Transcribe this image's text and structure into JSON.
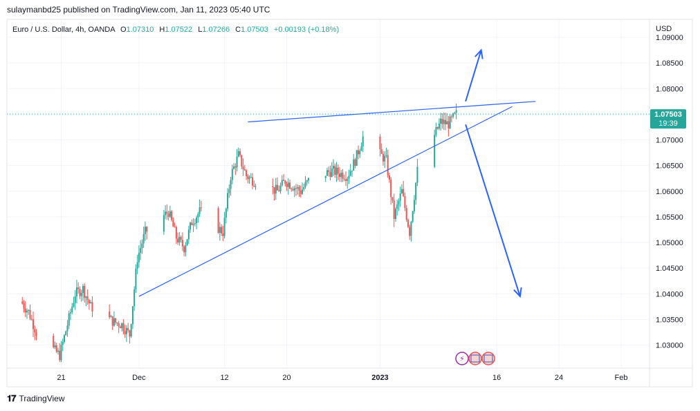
{
  "header": {
    "published": "sulaymanbd25 published on TradingView.com, Jan 11, 2023 05:40 UTC"
  },
  "symbol": {
    "name": "Euro / U.S. Dollar, 4h, OANDA",
    "open_label": "O",
    "open": "1.07310",
    "high_label": "H",
    "high": "1.07522",
    "low_label": "L",
    "low": "1.07266",
    "close_label": "C",
    "close": "1.07503",
    "change": "+0.00193 (+0.18%)"
  },
  "price_tag": {
    "price": "1.07503",
    "countdown": "19:39"
  },
  "footer": {
    "brand": "TradingView"
  },
  "colors": {
    "up": "#26a69a",
    "down": "#ef5350",
    "drawing": "#2962ff",
    "axis_text": "#131722"
  },
  "chart_data": {
    "type": "candlestick",
    "currency": "USD",
    "ylim": [
      1.0255,
      1.0935
    ],
    "y_ticks": [
      "1.09000",
      "1.08500",
      "1.08000",
      "1.07500",
      "1.07000",
      "1.06500",
      "1.06000",
      "1.05500",
      "1.05000",
      "1.04500",
      "1.04000",
      "1.03500",
      "1.03000"
    ],
    "x_ticks": [
      "21",
      "Dec",
      "12",
      "20",
      "2023",
      "16",
      "24",
      "Feb"
    ],
    "last_price": 1.07503,
    "series": [
      {
        "date": "Nov 16",
        "value": 1.0385
      },
      {
        "date": "Nov 17",
        "value": 1.0365
      },
      {
        "date": "Nov 18",
        "value": 1.0325
      },
      {
        "date": "Nov 21",
        "value": 1.028
      },
      {
        "date": "Nov 22",
        "value": 1.034
      },
      {
        "date": "Nov 23",
        "value": 1.04
      },
      {
        "date": "Nov 24",
        "value": 1.041
      },
      {
        "date": "Nov 25",
        "value": 1.0375
      },
      {
        "date": "Nov 28",
        "value": 1.0345
      },
      {
        "date": "Nov 29",
        "value": 1.034
      },
      {
        "date": "Nov 30",
        "value": 1.032
      },
      {
        "date": "Dec 1",
        "value": 1.047
      },
      {
        "date": "Dec 2",
        "value": 1.052
      },
      {
        "date": "Dec 5",
        "value": 1.056
      },
      {
        "date": "Dec 6",
        "value": 1.051
      },
      {
        "date": "Dec 7",
        "value": 1.049
      },
      {
        "date": "Dec 8",
        "value": 1.054
      },
      {
        "date": "Dec 9",
        "value": 1.056
      },
      {
        "date": "Dec 12",
        "value": 1.052
      },
      {
        "date": "Dec 13",
        "value": 1.063
      },
      {
        "date": "Dec 14",
        "value": 1.067
      },
      {
        "date": "Dec 15",
        "value": 1.063
      },
      {
        "date": "Dec 16",
        "value": 1.062
      },
      {
        "date": "Dec 19",
        "value": 1.06
      },
      {
        "date": "Dec 20",
        "value": 1.062
      },
      {
        "date": "Dec 21",
        "value": 1.061
      },
      {
        "date": "Dec 22",
        "value": 1.06
      },
      {
        "date": "Dec 23",
        "value": 1.062
      },
      {
        "date": "Dec 26",
        "value": 1.064
      },
      {
        "date": "Dec 27",
        "value": 1.0635
      },
      {
        "date": "Dec 28",
        "value": 1.063
      },
      {
        "date": "Dec 29",
        "value": 1.066
      },
      {
        "date": "Dec 30",
        "value": 1.0705
      },
      {
        "date": "Jan 2",
        "value": 1.066
      },
      {
        "date": "Jan 3",
        "value": 1.055
      },
      {
        "date": "Jan 4",
        "value": 1.06
      },
      {
        "date": "Jan 5",
        "value": 1.052
      },
      {
        "date": "Jan 6",
        "value": 1.064
      },
      {
        "date": "Jan 9",
        "value": 1.0735
      },
      {
        "date": "Jan 10",
        "value": 1.0731
      },
      {
        "date": "Jan 11",
        "value": 1.07503
      }
    ],
    "drawings": [
      {
        "name": "upper-resistance-line",
        "x1": "Dec 15",
        "y1": 1.0735,
        "x2": "Jan 21",
        "y2": 1.0775
      },
      {
        "name": "lower-support-line",
        "x1": "Dec 1",
        "y1": 1.0395,
        "x2": "Jan 18",
        "y2": 1.0765
      },
      {
        "name": "up-scenario-arrow",
        "x1": "Jan 12",
        "y1": 1.0775,
        "x2": "Jan 14",
        "y2": 1.0875
      },
      {
        "name": "down-scenario-arrow",
        "x1": "Jan 12",
        "y1": 1.073,
        "x2": "Jan 19",
        "y2": 1.0395
      }
    ]
  }
}
